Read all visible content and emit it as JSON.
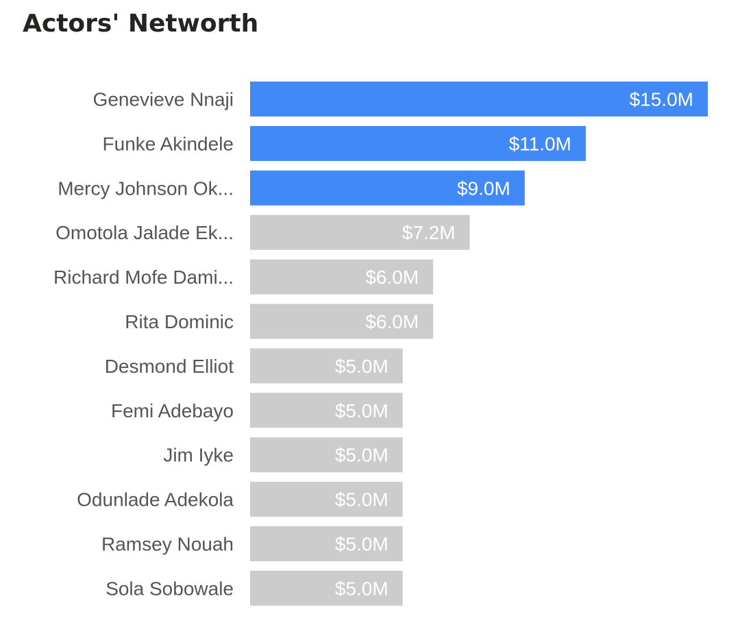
{
  "chart_data": {
    "type": "bar",
    "orientation": "horizontal",
    "title": "Actors' Networth",
    "xlabel": "",
    "ylabel": "",
    "grid": false,
    "legend": "none",
    "xlim": [
      0,
      15
    ],
    "categories": [
      "Genevieve Nnaji",
      "Funke Akindele",
      "Mercy Johnson Ok...",
      "Omotola Jalade Ek...",
      "Richard Mofe Dami...",
      "Rita Dominic",
      "Desmond Elliot",
      "Femi Adebayo",
      "Jim Iyke",
      "Odunlade Adekola",
      "Ramsey Nouah",
      "Sola Sobowale"
    ],
    "values": [
      15.0,
      11.0,
      9.0,
      7.2,
      6.0,
      6.0,
      5.0,
      5.0,
      5.0,
      5.0,
      5.0,
      5.0
    ],
    "value_labels": [
      "$15.0M",
      "$11.0M",
      "$9.0M",
      "$7.2M",
      "$6.0M",
      "$6.0M",
      "$5.0M",
      "$5.0M",
      "$5.0M",
      "$5.0M",
      "$5.0M",
      "$5.0M"
    ],
    "highlight_top_n": 3,
    "colors": {
      "highlight": "#4189F7",
      "default": "#CCCCCC",
      "value_label": "#FFFFFF",
      "category_label": "#555555",
      "title": "#252423"
    }
  }
}
